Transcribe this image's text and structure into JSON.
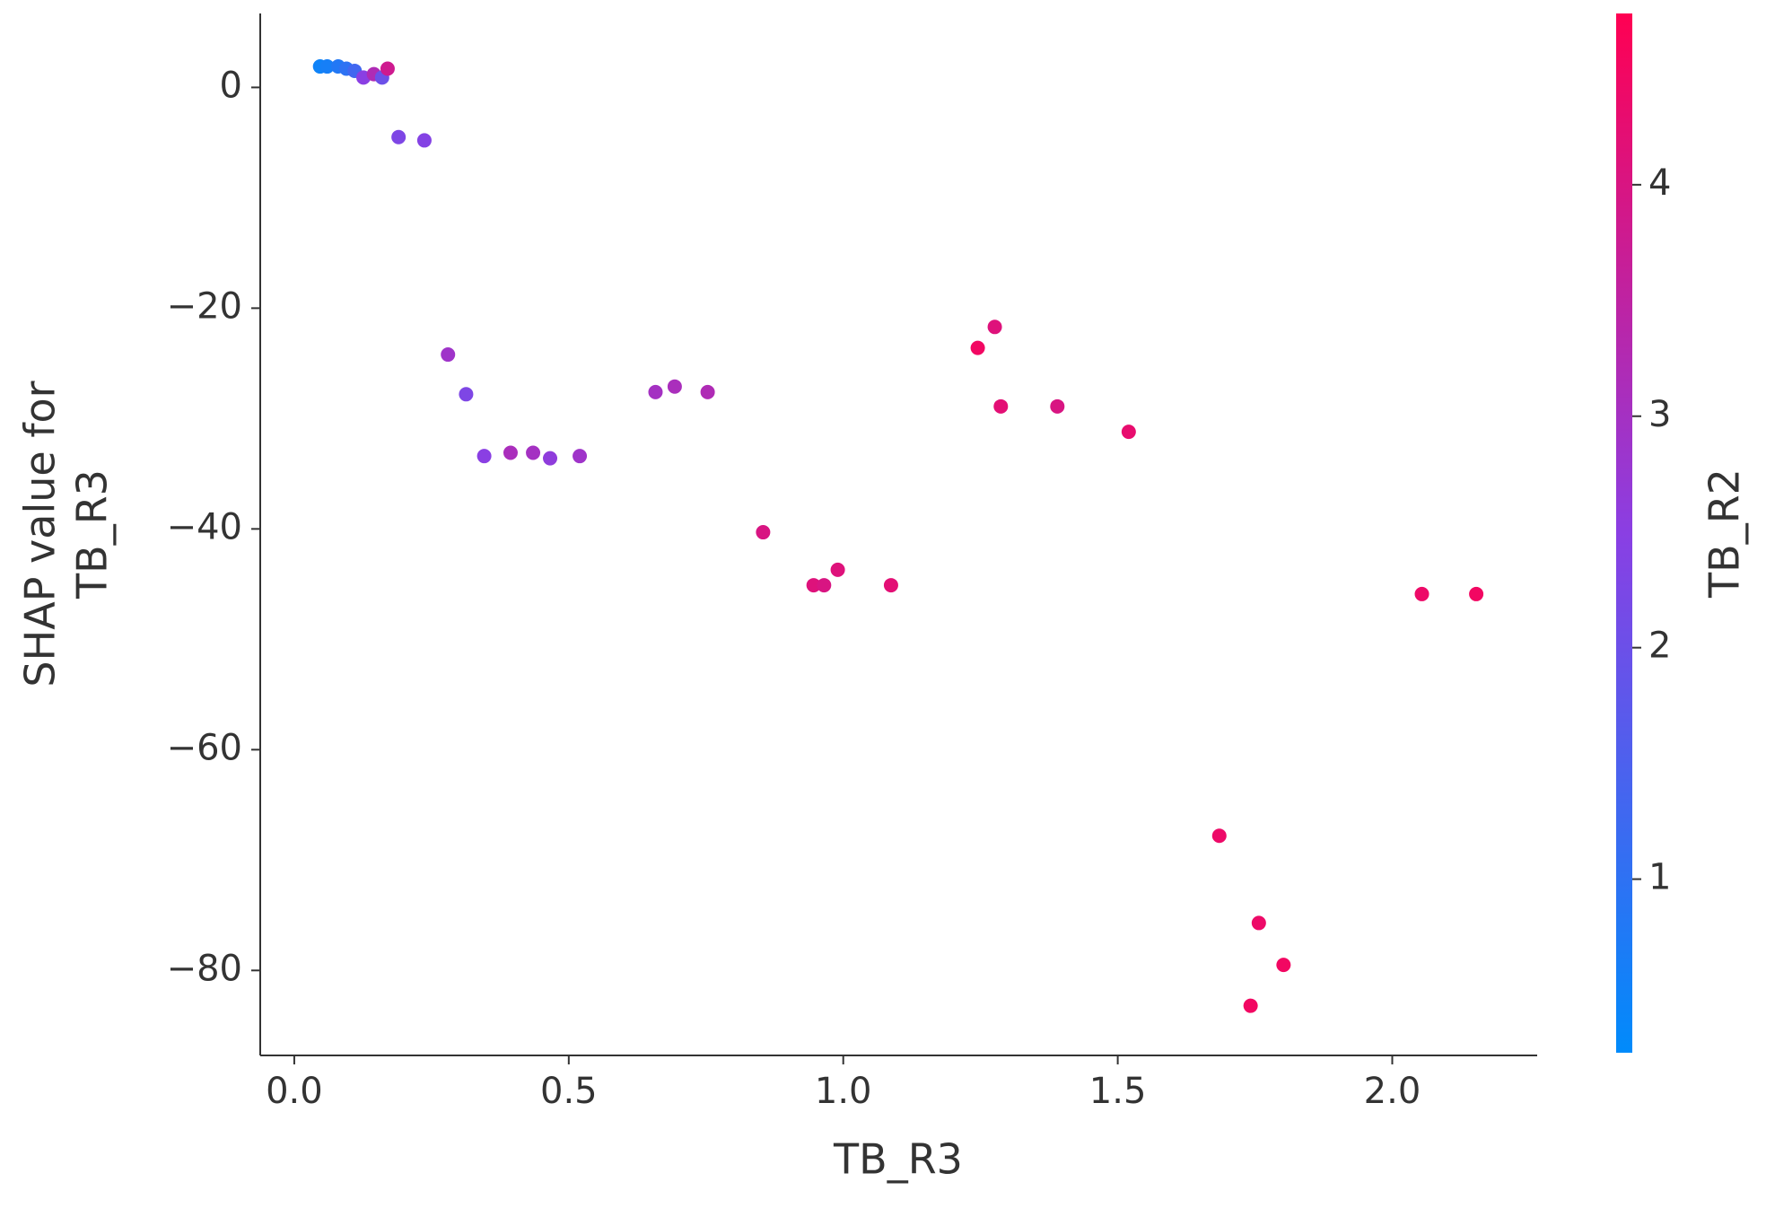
{
  "chart_data": {
    "type": "scatter",
    "xlabel": "TB_R3",
    "ylabel": [
      "SHAP value for",
      "TB_R3"
    ],
    "colorbar_label": "TB_R2",
    "x": [
      0.047,
      0.06,
      0.08,
      0.095,
      0.11,
      0.126,
      0.145,
      0.16,
      0.17,
      0.19,
      0.237,
      0.28,
      0.313,
      0.346,
      0.394,
      0.435,
      0.466,
      0.52,
      0.658,
      0.693,
      0.753,
      0.854,
      0.946,
      0.965,
      0.99,
      1.087,
      1.245,
      1.276,
      1.287,
      1.39,
      1.52,
      1.685,
      1.742,
      1.757,
      1.802,
      2.054,
      2.153
    ],
    "y": [
      1.9,
      1.9,
      1.9,
      1.7,
      1.5,
      0.9,
      1.2,
      0.9,
      1.7,
      -4.5,
      -4.8,
      -24.2,
      -27.8,
      -33.4,
      -33.1,
      -33.1,
      -33.6,
      -33.4,
      -27.6,
      -27.1,
      -27.6,
      -40.3,
      -45.1,
      -45.1,
      -43.7,
      -45.1,
      -23.6,
      -21.7,
      -28.9,
      -28.9,
      -31.2,
      -67.8,
      -83.2,
      -75.7,
      -79.5,
      -45.9,
      -45.9
    ],
    "color_values": [
      0.5,
      0.6,
      0.8,
      1.0,
      1.3,
      2.5,
      3.2,
      2.0,
      3.8,
      2.3,
      2.4,
      2.9,
      2.3,
      2.5,
      3.1,
      3.0,
      2.6,
      2.9,
      3.0,
      3.1,
      3.2,
      4.0,
      4.1,
      4.0,
      4.1,
      4.2,
      4.5,
      4.1,
      4.2,
      4.0,
      4.3,
      4.4,
      4.5,
      4.4,
      4.5,
      4.4,
      4.5
    ],
    "colormap": [
      "#008bfb",
      "#8a3fe3",
      "#ff0052"
    ],
    "xlim": [
      -0.062,
      2.264
    ],
    "ylim": [
      -87.7,
      6.7
    ],
    "clim": [
      0.25,
      4.74
    ],
    "xticks": [
      {
        "value": 0,
        "label": "0.0"
      },
      0.5,
      {
        "value": 1,
        "label": "1.0"
      },
      1.5,
      {
        "value": 2,
        "label": "2.0"
      }
    ],
    "yticks": [
      0,
      {
        "value": -20,
        "label": "−20"
      },
      {
        "value": -40,
        "label": "−40"
      },
      {
        "value": -60,
        "label": "−60"
      },
      {
        "value": -80,
        "label": "−80"
      }
    ],
    "cticks": [
      1,
      2,
      3,
      4
    ]
  }
}
